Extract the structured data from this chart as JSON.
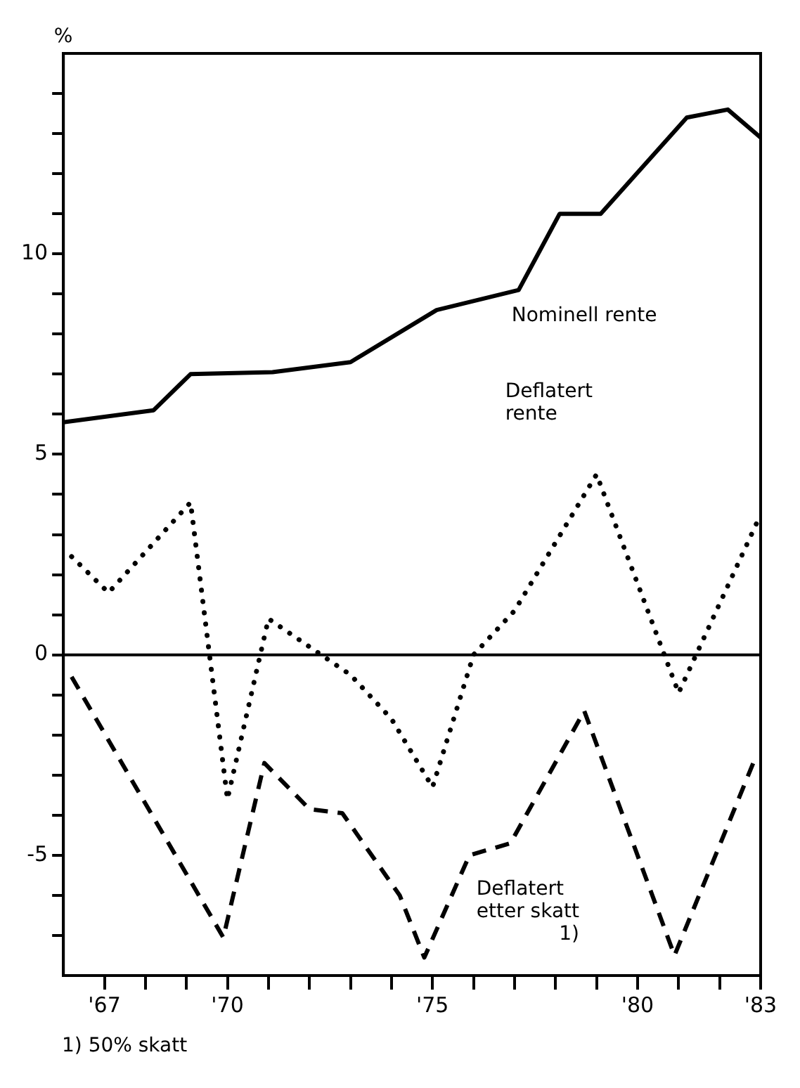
{
  "chart_data": {
    "type": "line",
    "ylabel": "%",
    "xlim": [
      1966,
      1983
    ],
    "ylim": [
      -8,
      15
    ],
    "xticks": [
      {
        "value": 1967,
        "label": "'67"
      },
      {
        "value": 1968,
        "label": null
      },
      {
        "value": 1969,
        "label": null
      },
      {
        "value": 1970,
        "label": "'70"
      },
      {
        "value": 1971,
        "label": null
      },
      {
        "value": 1972,
        "label": null
      },
      {
        "value": 1973,
        "label": null
      },
      {
        "value": 1974,
        "label": null
      },
      {
        "value": 1975,
        "label": "'75"
      },
      {
        "value": 1976,
        "label": null
      },
      {
        "value": 1977,
        "label": null
      },
      {
        "value": 1978,
        "label": null
      },
      {
        "value": 1979,
        "label": null
      },
      {
        "value": 1980,
        "label": "'80"
      },
      {
        "value": 1981,
        "label": null
      },
      {
        "value": 1982,
        "label": null
      },
      {
        "value": 1983,
        "label": "'83"
      }
    ],
    "yticks": [
      {
        "value": -7,
        "label": null
      },
      {
        "value": -6,
        "label": null
      },
      -5,
      {
        "value": -4,
        "label": null
      },
      {
        "value": -3,
        "label": null
      },
      {
        "value": -2,
        "label": null
      },
      {
        "value": -1,
        "label": null
      },
      0,
      {
        "value": 1,
        "label": null
      },
      {
        "value": 2,
        "label": null
      },
      {
        "value": 3,
        "label": null
      },
      {
        "value": 4,
        "label": null
      },
      5,
      {
        "value": 6,
        "label": null
      },
      {
        "value": 7,
        "label": null
      },
      {
        "value": 8,
        "label": null
      },
      {
        "value": 9,
        "label": null
      },
      10,
      {
        "value": 11,
        "label": null
      },
      {
        "value": 12,
        "label": null
      },
      {
        "value": 13,
        "label": null
      },
      {
        "value": 14,
        "label": null
      }
    ],
    "grid": false,
    "legend": false,
    "marker": "none",
    "ref_lines": [
      {
        "axis": "y",
        "value": 0,
        "color": "#000000",
        "line_style": "solid"
      }
    ],
    "series": [
      {
        "name": "Nominell rente",
        "color": "#000000",
        "line_style": "solid",
        "x": [
          1966,
          1968.2,
          1969.1,
          1971.1,
          1973,
          1975.1,
          1977.1,
          1978.1,
          1979.1,
          1981.2,
          1982.2,
          1983
        ],
        "values": [
          5.8,
          6.1,
          7.0,
          7.05,
          7.3,
          8.6,
          9.1,
          11.0,
          11.0,
          13.4,
          13.6,
          12.9
        ]
      },
      {
        "name": "Deflatert rente",
        "color": "#000000",
        "line_style": "dotted",
        "x": [
          1966.2,
          1967.1,
          1969.1,
          1970,
          1971,
          1973,
          1974,
          1975,
          1976,
          1977,
          1979,
          1981,
          1983
        ],
        "values": [
          2.45,
          1.55,
          3.8,
          -3.6,
          0.9,
          -0.5,
          -1.6,
          -3.3,
          0,
          1.1,
          4.5,
          -0.95,
          3.5
        ]
      },
      {
        "name": "Deflatert etter skatt 1)",
        "color": "#000000",
        "line_style": "dashed",
        "x": [
          1966.2,
          1969.9,
          1970.9,
          1972,
          1972.8,
          1974.2,
          1974.8,
          1975.9,
          1976.9,
          1978.7,
          1980.9,
          1982.9
        ],
        "values": [
          -0.55,
          -7.05,
          -2.7,
          -3.85,
          -3.95,
          -6.0,
          -7.55,
          -5.0,
          -4.7,
          -1.4,
          -7.5,
          -2.5
        ]
      }
    ],
    "annotations": [
      "1) 50% skatt"
    ]
  }
}
